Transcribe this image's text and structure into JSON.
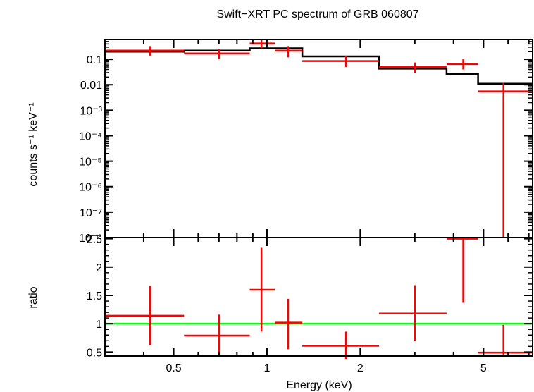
{
  "chart_data": {
    "title": "Swift−XRT PC spectrum of GRB 060807",
    "xlabel": "Energy (keV)",
    "x_scale": "log",
    "xlim": [
      0.3,
      7.2
    ],
    "x_ticks": [
      {
        "value": 0.5,
        "label": "0.5"
      },
      {
        "value": 1,
        "label": "1"
      },
      {
        "value": 2,
        "label": "2"
      },
      {
        "value": 5,
        "label": "5"
      }
    ],
    "panels": [
      {
        "id": "spectrum",
        "type": "scatter",
        "ylabel": "counts s⁻¹ keV⁻¹",
        "y_scale": "log",
        "ylim": [
          1e-08,
          0.6
        ],
        "y_ticks": [
          {
            "value": 0.1,
            "label": "0.1"
          },
          {
            "value": 0.01,
            "label": "0.01"
          },
          {
            "value": 0.001,
            "label": "10⁻³"
          },
          {
            "value": 0.0001,
            "label": "10⁻⁴"
          },
          {
            "value": 1e-05,
            "label": "10⁻⁵"
          },
          {
            "value": 1e-06,
            "label": "10⁻⁶"
          },
          {
            "value": 1e-07,
            "label": "10⁻⁷"
          },
          {
            "value": 1e-08,
            "label": "10⁻⁸"
          }
        ],
        "data_points": [
          {
            "x": 0.42,
            "xlo": 0.3,
            "xhi": 0.54,
            "y": 0.22,
            "ylo": 0.14,
            "yhi": 0.33
          },
          {
            "x": 0.7,
            "xlo": 0.54,
            "xhi": 0.88,
            "y": 0.17,
            "ylo": 0.1,
            "yhi": 0.26
          },
          {
            "x": 0.96,
            "xlo": 0.88,
            "xhi": 1.06,
            "y": 0.42,
            "ylo": 0.27,
            "yhi": 0.6
          },
          {
            "x": 1.17,
            "xlo": 1.06,
            "xhi": 1.3,
            "y": 0.22,
            "ylo": 0.12,
            "yhi": 0.33
          },
          {
            "x": 1.8,
            "xlo": 1.3,
            "xhi": 2.3,
            "y": 0.085,
            "ylo": 0.05,
            "yhi": 0.13
          },
          {
            "x": 3.0,
            "xlo": 2.3,
            "xhi": 3.8,
            "y": 0.05,
            "ylo": 0.03,
            "yhi": 0.075
          },
          {
            "x": 4.3,
            "xlo": 3.8,
            "xhi": 4.8,
            "y": 0.065,
            "ylo": 0.04,
            "yhi": 0.1
          },
          {
            "x": 5.8,
            "xlo": 4.8,
            "xhi": 7.2,
            "y": 0.0055,
            "ylo": 1e-08,
            "yhi": 0.012
          }
        ],
        "model_steps": [
          {
            "xlo": 0.3,
            "xhi": 0.54,
            "y": 0.2
          },
          {
            "xlo": 0.54,
            "xhi": 0.88,
            "y": 0.22
          },
          {
            "xlo": 0.88,
            "xhi": 1.3,
            "y": 0.27
          },
          {
            "xlo": 1.3,
            "xhi": 2.3,
            "y": 0.13
          },
          {
            "xlo": 2.3,
            "xhi": 3.8,
            "y": 0.043
          },
          {
            "xlo": 3.8,
            "xhi": 4.8,
            "y": 0.027
          },
          {
            "xlo": 4.8,
            "xhi": 7.2,
            "y": 0.011
          }
        ]
      },
      {
        "id": "ratio",
        "type": "scatter",
        "ylabel": "ratio",
        "y_scale": "linear",
        "ylim": [
          0.43,
          2.52
        ],
        "y_ticks": [
          {
            "value": 0.5,
            "label": "0.5"
          },
          {
            "value": 1,
            "label": "1"
          },
          {
            "value": 1.5,
            "label": "1.5"
          },
          {
            "value": 2,
            "label": "2"
          },
          {
            "value": 2.5,
            "label": "2.5"
          }
        ],
        "reference_line": 1,
        "data_points": [
          {
            "x": 0.42,
            "xlo": 0.3,
            "xhi": 0.54,
            "y": 1.14,
            "ylo": 0.62,
            "yhi": 1.67
          },
          {
            "x": 0.7,
            "xlo": 0.54,
            "xhi": 0.88,
            "y": 0.79,
            "ylo": 0.43,
            "yhi": 1.16
          },
          {
            "x": 0.96,
            "xlo": 0.88,
            "xhi": 1.06,
            "y": 1.6,
            "ylo": 0.86,
            "yhi": 2.34
          },
          {
            "x": 1.17,
            "xlo": 1.06,
            "xhi": 1.3,
            "y": 1.02,
            "ylo": 0.55,
            "yhi": 1.44
          },
          {
            "x": 1.8,
            "xlo": 1.3,
            "xhi": 2.3,
            "y": 0.61,
            "ylo": 0.38,
            "yhi": 0.86
          },
          {
            "x": 3.0,
            "xlo": 2.3,
            "xhi": 3.8,
            "y": 1.18,
            "ylo": 0.7,
            "yhi": 1.68
          },
          {
            "x": 4.3,
            "xlo": 3.8,
            "xhi": 4.8,
            "y": 2.5,
            "ylo": 1.37,
            "yhi": 2.52
          },
          {
            "x": 5.8,
            "xlo": 4.8,
            "xhi": 7.2,
            "y": 0.49,
            "ylo": 0.43,
            "yhi": 0.98
          }
        ]
      }
    ],
    "colors": {
      "data": "#ff0000",
      "model": "#000000",
      "reference": "#00ff00",
      "axes": "#000000"
    }
  }
}
